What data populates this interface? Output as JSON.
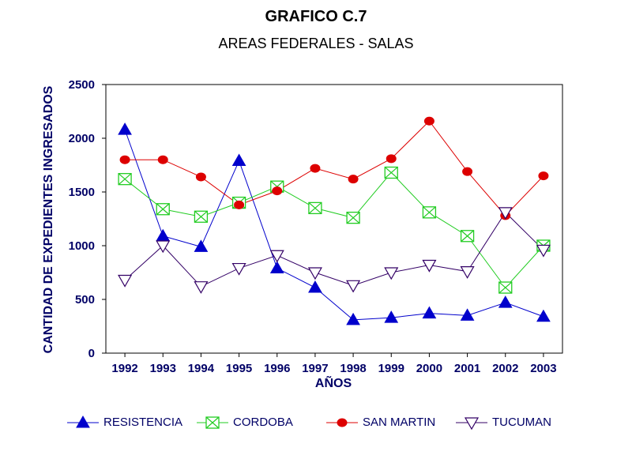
{
  "chart_data": {
    "type": "line",
    "title": "GRAFICO C.7",
    "subtitle": "AREAS FEDERALES   -   SALAS",
    "xlabel": "AÑOS",
    "ylabel": "CANTIDAD DE EXPEDIENTES INGRESADOS",
    "ylim": [
      0,
      2500
    ],
    "yticks": [
      0,
      500,
      1000,
      1500,
      2000,
      2500
    ],
    "categories": [
      "1992",
      "1993",
      "1994",
      "1995",
      "1996",
      "1997",
      "1998",
      "1999",
      "2000",
      "2001",
      "2002",
      "2003"
    ],
    "legend_position": "bottom",
    "grid": false,
    "series": [
      {
        "name": "RESISTENCIA",
        "color": "#0000cc",
        "marker": "triangle-up-filled",
        "values": [
          2080,
          1090,
          990,
          1790,
          790,
          610,
          310,
          330,
          370,
          350,
          470,
          340
        ]
      },
      {
        "name": "CORDOBA",
        "color": "#22cc22",
        "marker": "square-x",
        "values": [
          1620,
          1340,
          1270,
          1400,
          1550,
          1350,
          1260,
          1680,
          1310,
          1090,
          610,
          1000
        ]
      },
      {
        "name": "SAN MARTIN",
        "color": "#dd0000",
        "marker": "circle-filled",
        "values": [
          1800,
          1800,
          1640,
          1380,
          1510,
          1720,
          1620,
          1810,
          2160,
          1690,
          1280,
          1650
        ]
      },
      {
        "name": "TUCUMAN",
        "color": "#330066",
        "marker": "triangle-down-open",
        "values": [
          680,
          1000,
          620,
          790,
          910,
          750,
          630,
          750,
          820,
          760,
          1310,
          960
        ]
      }
    ]
  }
}
